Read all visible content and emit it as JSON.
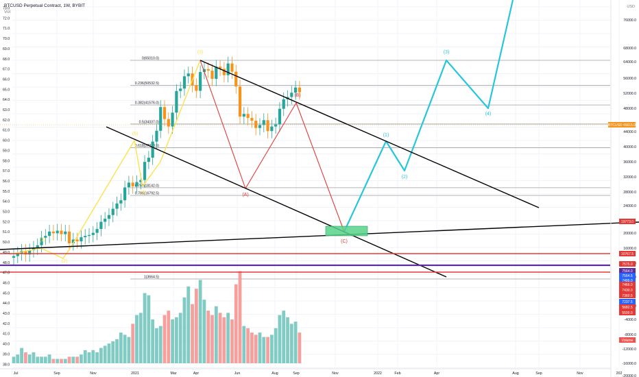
{
  "header": {
    "title": "BTCUSD Perpetual Contract, 1W, BYBIT",
    "subtitle": "Vol"
  },
  "colors": {
    "up": "#26a69a",
    "down": "#ef5350",
    "upVol": "#80cbc4",
    "downVol": "#f6a09e",
    "orange": "#f7931a",
    "yellow": "#ffe14d",
    "red": "#e53935",
    "cyan": "#26c6da",
    "black": "#000000",
    "purple": "#5b2ca0",
    "fib": "#9e9e9e"
  },
  "chart_data": {
    "type": "candlestick",
    "title": "BTCUSD Perpetual Contract, 1W, BYBIT",
    "y_scale": "log",
    "ylim": [
      9000,
      98000
    ],
    "price_axis_label": "USD",
    "right_axis_ticks": [
      "76000.0",
      "68000.0",
      "64000.0",
      "56000.0",
      "52000.0",
      "48000.0",
      "44000.0",
      "40000.0",
      "36000.0",
      "32000.0",
      "28000.0",
      "24000.0",
      "20000.0",
      "16000.0",
      "12000.0",
      "8000.0",
      "4000.0",
      "-4000.0",
      "-8000.0",
      "-12000.0",
      "-16000.0",
      "-20000.0"
    ],
    "left_axis_ticks": [
      "73.0",
      "72.0",
      "71.0",
      "70.0",
      "69.0",
      "68.0",
      "67.0",
      "66.0",
      "65.0",
      "64.0",
      "63.0",
      "62.0",
      "61.0",
      "60.0",
      "59.0",
      "58.0",
      "57.0",
      "56.0",
      "55.0",
      "54.0",
      "53.0",
      "52.0",
      "51.0",
      "50.0",
      "49.0",
      "48.0",
      "47.0",
      "46.0",
      "45.0",
      "44.0",
      "43.0",
      "42.0",
      "41.0",
      "40.0",
      "39.0",
      "38.0"
    ],
    "x_ticks": [
      "Jul",
      "Sep",
      "Nov",
      "2021",
      "Mar",
      "Apr",
      "Jun",
      "Aug",
      "Sep",
      "Nov",
      "2022",
      "Feb",
      "Apr",
      "Aug",
      "Sep",
      "Nov",
      "202"
    ],
    "candles_close": [
      9150,
      9400,
      9650,
      9300,
      9700,
      9950,
      10200,
      11000,
      11200,
      11700,
      11500,
      11800,
      11400,
      11700,
      10400,
      10800,
      10600,
      11050,
      11200,
      11300,
      11550,
      12000,
      12900,
      13300,
      13800,
      14700,
      15500,
      16000,
      18200,
      19100,
      18400,
      19200,
      19600,
      23500,
      24500,
      28800,
      32100,
      40700,
      36100,
      33500,
      38500,
      47800,
      49000,
      55400,
      57000,
      50700,
      47900,
      57800,
      59500,
      58600,
      54000,
      61000,
      59700,
      56000,
      63000,
      58000,
      50000,
      37000,
      38000,
      36500,
      35500,
      33000,
      34000,
      35700,
      32000,
      33500,
      34200,
      40000,
      44000,
      45000,
      47000,
      49500,
      47200
    ],
    "fib_levels": [
      {
        "label": "0(65010.0)",
        "price": 65010
      },
      {
        "label": "0.236(50532.5)",
        "price": 50532.5
      },
      {
        "label": "0.382(41576.0)",
        "price": 41576
      },
      {
        "label": "0.5(34337.0)",
        "price": 34337
      },
      {
        "label": "0.618(27098.5)",
        "price": 27098.5
      },
      {
        "label": "0.764(18142.0)",
        "price": 18142
      },
      {
        "label": "0.786(16792.5)",
        "price": 16792.5
      },
      {
        "label": "1(3664.5)",
        "price": 3664.5
      }
    ],
    "wave_labels": [
      {
        "text": "(1)",
        "color": "yellow"
      },
      {
        "text": "(2)",
        "color": "yellow"
      },
      {
        "text": "(3)",
        "color": "yellow"
      },
      {
        "text": "(4)",
        "color": "yellow"
      },
      {
        "text": "(5)",
        "color": "yellow"
      },
      {
        "text": "(A)",
        "color": "red"
      },
      {
        "text": "(B)",
        "color": "red"
      },
      {
        "text": "(C)",
        "color": "red"
      },
      {
        "text": "(1)",
        "color": "cyan"
      },
      {
        "text": "(2)",
        "color": "cyan"
      },
      {
        "text": "(3)",
        "color": "cyan"
      },
      {
        "text": "(4)",
        "color": "cyan"
      }
    ],
    "price_tags": [
      {
        "text": "BTCUSD 46615.0",
        "color": "#f7931a"
      },
      {
        "text": "19773.0",
        "color": "#e53935"
      },
      {
        "text": "10767.5",
        "color": "#e53935"
      },
      {
        "text": "7575.0",
        "color": "#e53935"
      },
      {
        "text": "7564.0",
        "color": "#5b2ca0"
      },
      {
        "text": "7564.5",
        "color": "#2962ff"
      },
      {
        "text": "7495.0",
        "color": "#2962ff"
      },
      {
        "text": "7466.0",
        "color": "#e53935"
      },
      {
        "text": "7430.0",
        "color": "#e53935"
      },
      {
        "text": "7360.5",
        "color": "#e53935"
      },
      {
        "text": "7237.5",
        "color": "#2962ff"
      },
      {
        "text": "5682.5",
        "color": "#e53935"
      },
      {
        "text": "5500.0",
        "color": "#e53935"
      },
      {
        "text": "Volume",
        "color": "#ef5350"
      }
    ],
    "volumes": [
      3,
      4,
      7,
      5,
      4,
      5,
      3,
      3,
      3,
      4,
      2,
      2,
      2,
      2,
      3,
      3,
      3,
      4,
      6,
      5,
      6,
      5,
      7,
      8,
      9,
      10,
      11,
      14,
      13,
      12,
      18,
      22,
      23,
      32,
      31,
      20,
      16,
      17,
      22,
      24,
      20,
      21,
      23,
      30,
      35,
      27,
      34,
      38,
      29,
      24,
      22,
      26,
      23,
      21,
      23,
      20,
      36,
      42,
      17,
      16,
      14,
      13,
      14,
      12,
      12,
      13,
      16,
      22,
      24,
      21,
      18,
      19,
      14
    ]
  }
}
